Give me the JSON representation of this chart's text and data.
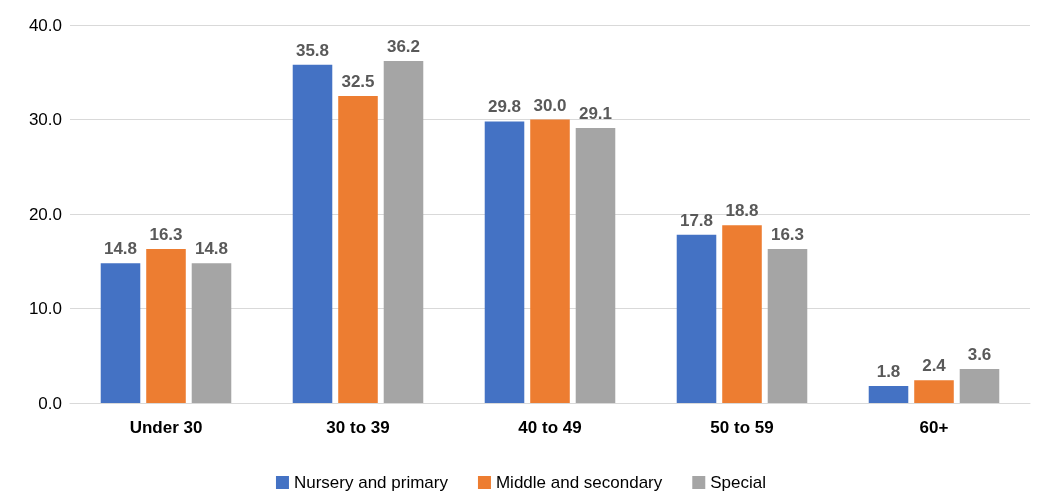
{
  "chart_data": {
    "type": "bar",
    "categories": [
      "Under 30",
      "30 to 39",
      "40 to 49",
      "50 to 59",
      "60+"
    ],
    "series": [
      {
        "name": "Nursery and primary",
        "color": "#4472c4",
        "values": [
          14.8,
          35.8,
          29.8,
          17.8,
          1.8
        ],
        "value_labels": [
          "14.8",
          "35.8",
          "29.8",
          "17.8",
          "1.8"
        ]
      },
      {
        "name": "Middle and secondary",
        "color": "#ed7d31",
        "values": [
          16.3,
          32.5,
          30.0,
          18.8,
          2.4
        ],
        "value_labels": [
          "16.3",
          "32.5",
          "30.0",
          "18.8",
          "2.4"
        ]
      },
      {
        "name": "Special",
        "color": "#a5a5a5",
        "values": [
          14.8,
          36.2,
          29.1,
          16.3,
          3.6
        ],
        "value_labels": [
          "14.8",
          "36.2",
          "29.1",
          "16.3",
          "3.6"
        ]
      }
    ],
    "ylim": [
      0,
      40
    ],
    "yticks": [
      {
        "value": 0,
        "label": "0.0"
      },
      {
        "value": 10,
        "label": "10.0"
      },
      {
        "value": 20,
        "label": "20.0"
      },
      {
        "value": 30,
        "label": "30.0"
      },
      {
        "value": 40,
        "label": "40.0"
      }
    ],
    "grid": "y",
    "legend": "bottom"
  }
}
